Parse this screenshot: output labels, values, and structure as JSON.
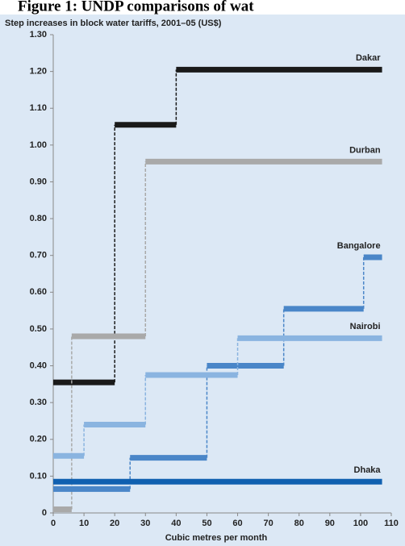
{
  "chart_data": {
    "type": "step",
    "title": "Figure 1: UNDP comparisons of wat",
    "subtitle": "Step increases in block water tariffs, 2001–05 (US$)",
    "xlabel": "Cubic metres per month",
    "xlim": [
      0,
      110
    ],
    "xticks": [
      0,
      10,
      20,
      30,
      40,
      50,
      60,
      70,
      80,
      90,
      100,
      110
    ],
    "ylim": [
      0,
      1.3
    ],
    "yticks": [
      0,
      {
        "value": 0.1,
        "label": "0.10"
      },
      {
        "value": 0.2,
        "label": "0.20"
      },
      {
        "value": 0.3,
        "label": "0.30"
      },
      {
        "value": 0.4,
        "label": "0.40"
      },
      {
        "value": 0.5,
        "label": "0.50"
      },
      {
        "value": 0.6,
        "label": "0.60"
      },
      {
        "value": 0.7,
        "label": "0.70"
      },
      {
        "value": 0.8,
        "label": "0.80"
      },
      {
        "value": 0.9,
        "label": "0.90"
      },
      {
        "value": 1.0,
        "label": "1.00"
      },
      {
        "value": 1.1,
        "label": "1.10"
      },
      {
        "value": 1.2,
        "label": "1.20"
      },
      {
        "value": 1.3,
        "label": "1.30"
      }
    ],
    "series": [
      {
        "name": "Dakar",
        "color": "#1a1a1a",
        "x": [
          0,
          20,
          40,
          107
        ],
        "values": [
          0.355,
          1.055,
          1.205,
          1.205
        ]
      },
      {
        "name": "Durban",
        "color": "#a9a9a9",
        "x": [
          0,
          6,
          30,
          107
        ],
        "values": [
          0.01,
          0.48,
          0.955,
          0.955
        ]
      },
      {
        "name": "Bangalore",
        "color": "#4a86c8",
        "x": [
          0,
          25,
          50,
          75,
          101,
          107
        ],
        "values": [
          0.065,
          0.15,
          0.4,
          0.555,
          0.695,
          0.695
        ]
      },
      {
        "name": "Nairobi",
        "color": "#8ab4e0",
        "x": [
          0,
          10,
          30,
          60,
          107
        ],
        "values": [
          0.155,
          0.24,
          0.375,
          0.475,
          0.475
        ]
      },
      {
        "name": "Dhaka",
        "color": "#1060b0",
        "x": [
          0,
          107
        ],
        "values": [
          0.085,
          0.085
        ]
      }
    ]
  }
}
